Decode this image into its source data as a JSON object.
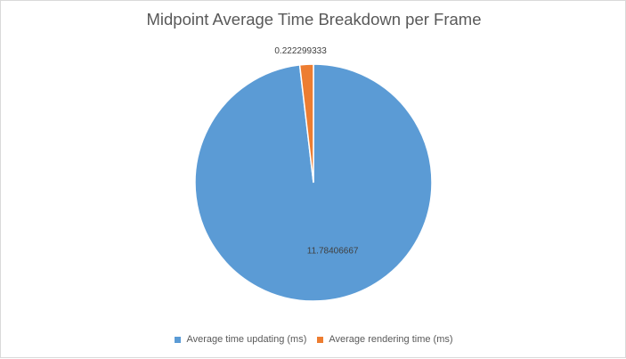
{
  "chart_data": {
    "type": "pie",
    "title": "Midpoint Average Time Breakdown per Frame",
    "categories": [
      "Average time updating (ms)",
      "Average rendering time (ms)"
    ],
    "values": [
      11.78406667,
      0.222299333
    ],
    "data_labels": [
      "11.78406667",
      "0.222299333"
    ],
    "colors": [
      "#5b9bd5",
      "#ed7d31"
    ],
    "legend_position": "bottom",
    "start_angle": "12 o'clock, clockwise"
  }
}
